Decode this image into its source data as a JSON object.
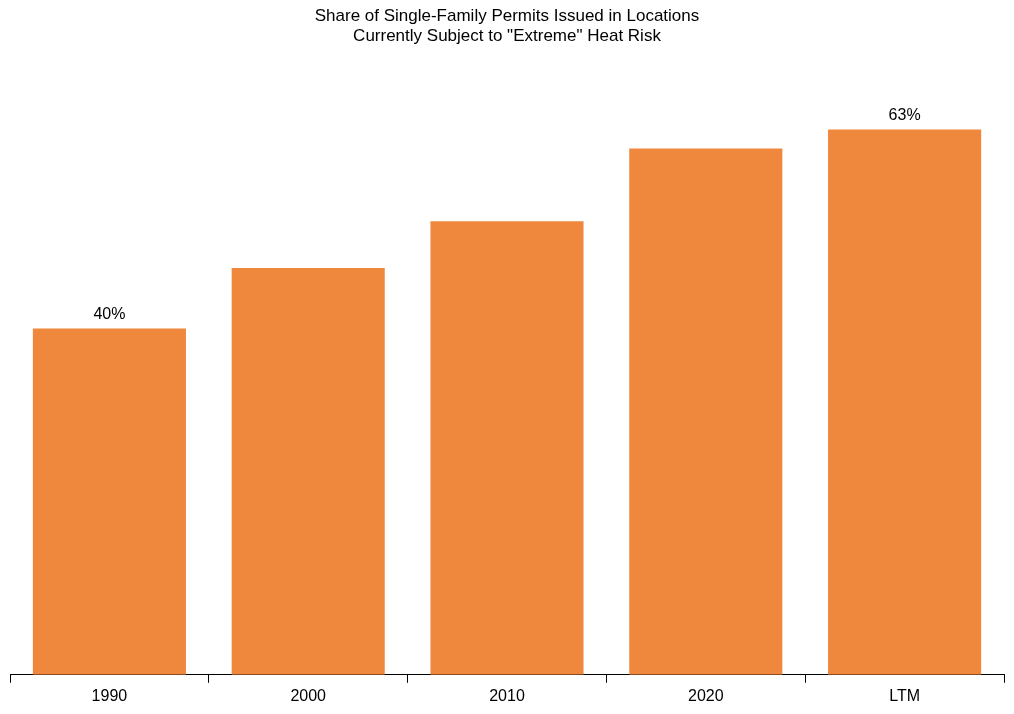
{
  "chart_data": {
    "type": "bar",
    "title": "Share of Single-Family Permits Issued in Locations\nCurrently Subject to \"Extreme\" Heat Risk",
    "categories": [
      "1990",
      "2000",
      "2010",
      "2020",
      "LTM"
    ],
    "values": [
      40,
      47,
      52.4,
      60.8,
      63
    ],
    "value_labels": [
      "40%",
      null,
      null,
      null,
      "63%"
    ],
    "color": "#ef873d",
    "grid": false,
    "legend": false,
    "tick_labels": "x"
  }
}
